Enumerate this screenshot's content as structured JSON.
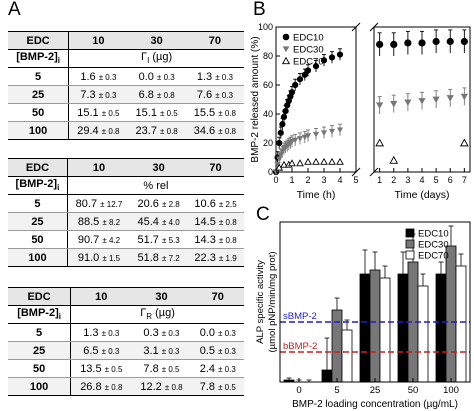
{
  "panel_labels": {
    "a": "A",
    "b": "B",
    "c": "C"
  },
  "tables": [
    {
      "edc_label": "EDC",
      "cols": [
        "10",
        "30",
        "70"
      ],
      "row_label": "[BMP-2]",
      "row_label_sub": "i",
      "measure": "Γ",
      "measure_sub": "I",
      "measure_unit": "(µg)",
      "rows": [
        {
          "conc": "5",
          "cells": [
            {
              "v": "1.6",
              "e": "± 0.3"
            },
            {
              "v": "0.0",
              "e": "± 0.3"
            },
            {
              "v": "1.3",
              "e": "± 0.3"
            }
          ]
        },
        {
          "conc": "25",
          "cells": [
            {
              "v": "7.3",
              "e": "± 0.3"
            },
            {
              "v": "6.8",
              "e": "± 0.8"
            },
            {
              "v": "7.6",
              "e": "± 0.3"
            }
          ]
        },
        {
          "conc": "50",
          "cells": [
            {
              "v": "15.1",
              "e": "± 0.5"
            },
            {
              "v": "15.1",
              "e": "± 0.5"
            },
            {
              "v": "15.5",
              "e": "± 0.8"
            }
          ]
        },
        {
          "conc": "100",
          "cells": [
            {
              "v": "29.4",
              "e": "± 0.8"
            },
            {
              "v": "23.7",
              "e": "± 0.8"
            },
            {
              "v": "34.6",
              "e": "± 0.8"
            }
          ]
        }
      ]
    },
    {
      "edc_label": "EDC",
      "cols": [
        "10",
        "30",
        "70"
      ],
      "row_label": "[BMP-2]",
      "row_label_sub": "i",
      "measure": "% rel",
      "measure_sub": "",
      "measure_unit": "",
      "rows": [
        {
          "conc": "5",
          "cells": [
            {
              "v": "80.7",
              "e": "± 12.7"
            },
            {
              "v": "20.6",
              "e": "± 2.8"
            },
            {
              "v": "10.6",
              "e": "± 2.5"
            }
          ]
        },
        {
          "conc": "25",
          "cells": [
            {
              "v": "88.5",
              "e": "± 8.2"
            },
            {
              "v": "45.4",
              "e": "± 4.0"
            },
            {
              "v": "14.5",
              "e": "± 0.8"
            }
          ]
        },
        {
          "conc": "50",
          "cells": [
            {
              "v": "90.7",
              "e": "± 4.2"
            },
            {
              "v": "51.7",
              "e": "± 5.3"
            },
            {
              "v": "14.3",
              "e": "± 0.8"
            }
          ]
        },
        {
          "conc": "100",
          "cells": [
            {
              "v": "91.0",
              "e": "± 1.5"
            },
            {
              "v": "51.8",
              "e": "± 7.2"
            },
            {
              "v": "22.3",
              "e": "± 1.9"
            }
          ]
        }
      ]
    },
    {
      "edc_label": "EDC",
      "cols": [
        "10",
        "30",
        "70"
      ],
      "row_label": "[BMP-2]",
      "row_label_sub": "i",
      "measure": "Γ",
      "measure_sub": "R",
      "measure_unit": "(µg)",
      "rows": [
        {
          "conc": "5",
          "cells": [
            {
              "v": "1.3",
              "e": "± 0.3"
            },
            {
              "v": "0.3",
              "e": "± 0.3"
            },
            {
              "v": "0.0",
              "e": "± 0.3"
            }
          ]
        },
        {
          "conc": "25",
          "cells": [
            {
              "v": "6.5",
              "e": "± 0.3"
            },
            {
              "v": "3.1",
              "e": "± 0.3"
            },
            {
              "v": "0.5",
              "e": "± 0.3"
            }
          ]
        },
        {
          "conc": "50",
          "cells": [
            {
              "v": "13.5",
              "e": "± 0.5"
            },
            {
              "v": "7.8",
              "e": "± 0.5"
            },
            {
              "v": "2.4",
              "e": "± 0.3"
            }
          ]
        },
        {
          "conc": "100",
          "cells": [
            {
              "v": "26.8",
              "e": "± 0.8"
            },
            {
              "v": "12.2",
              "e": "± 0.8"
            },
            {
              "v": "7.8",
              "e": "± 0.5"
            }
          ]
        }
      ]
    }
  ],
  "chart_data": [
    {
      "type": "scatter",
      "ylabel": "BMP-2 released amount (%)",
      "ylim": [
        0,
        100
      ],
      "yticks": [
        "0",
        "20",
        "40",
        "60",
        "80",
        "100"
      ],
      "legend_position": "top-left",
      "legend": [
        {
          "name": "EDC10",
          "marker": "filled-circle",
          "color": "#000000"
        },
        {
          "name": "EDC30",
          "marker": "filled-triangle-down",
          "color": "#777777"
        },
        {
          "name": "EDC70",
          "marker": "open-triangle-up",
          "color": "#000000"
        }
      ],
      "panels": [
        {
          "xlabel": "Time (h)",
          "xlim": [
            0,
            5
          ],
          "xticks": [
            "0",
            "1",
            "2",
            "3",
            "4",
            "5"
          ],
          "series": [
            {
              "name": "EDC10",
              "x": [
                0,
                0.1,
                0.2,
                0.3,
                0.4,
                0.5,
                0.6,
                0.7,
                0.8,
                0.9,
                1.0,
                1.2,
                1.5,
                1.8,
                2.0,
                2.5,
                3.0,
                3.5,
                4.0
              ],
              "y": [
                0,
                10,
                20,
                27,
                33,
                38,
                42,
                46,
                49,
                52,
                55,
                60,
                64,
                67,
                70,
                73,
                77,
                79,
                81
              ]
            },
            {
              "name": "EDC30",
              "x": [
                0,
                0.1,
                0.2,
                0.3,
                0.4,
                0.5,
                0.6,
                0.7,
                0.8,
                0.9,
                1.0,
                1.2,
                1.5,
                1.8,
                2.0,
                2.5,
                3.0,
                3.5,
                4.0
              ],
              "y": [
                0,
                5,
                9,
                12,
                14,
                16,
                17,
                18,
                19,
                20,
                21,
                22,
                23,
                24,
                25,
                26,
                27,
                28,
                29
              ]
            },
            {
              "name": "EDC70",
              "x": [
                0.2,
                0.5,
                0.8,
                1.0,
                1.5,
                2.0,
                2.5,
                3.0,
                3.5,
                4.0
              ],
              "y": [
                3,
                5,
                5,
                6,
                6,
                7,
                7,
                7,
                7,
                7
              ]
            }
          ]
        },
        {
          "xlabel": "Time (days)",
          "xlim": [
            0.6,
            7.4
          ],
          "xticks": [
            "1",
            "2",
            "3",
            "4",
            "5",
            "6",
            "7"
          ],
          "series": [
            {
              "name": "EDC10",
              "x": [
                1,
                2,
                3,
                4,
                5,
                6,
                7
              ],
              "y": [
                88,
                88,
                89,
                89,
                90,
                90,
                90
              ]
            },
            {
              "name": "EDC30",
              "x": [
                1,
                2,
                3,
                4,
                5,
                6,
                7
              ],
              "y": [
                46,
                47,
                48,
                49,
                50,
                51,
                52
              ]
            },
            {
              "name": "EDC70",
              "x": [
                1,
                2,
                7
              ],
              "y": [
                20,
                8,
                20
              ]
            }
          ]
        }
      ]
    },
    {
      "type": "bar",
      "xlabel": "BMP-2 loading concentration (µg/mL)",
      "ylabel": "ALP specific activity",
      "ylabel_line2": "(µmol pNP/min/mg prot)",
      "categories": [
        "0",
        "5",
        "25",
        "50",
        "100"
      ],
      "series": [
        {
          "name": "EDC10",
          "color": "#000000",
          "values": [
            0.05,
            0.3,
            2.7,
            2.7,
            2.7
          ],
          "errors": [
            0.05,
            0.8,
            0.6,
            0.55,
            0.3
          ]
        },
        {
          "name": "EDC30",
          "color": "#777777",
          "values": [
            0.0,
            1.8,
            2.8,
            3.0,
            3.4
          ],
          "errors": [
            0.05,
            0.3,
            0.45,
            0.7,
            0.5
          ]
        },
        {
          "name": "EDC70",
          "color": "#ffffff",
          "values": [
            0.0,
            1.3,
            2.6,
            2.4,
            2.9
          ],
          "errors": [
            0.05,
            0.25,
            0.3,
            0.3,
            0.3
          ]
        }
      ],
      "reference_lines": [
        {
          "label": "sBMP-2",
          "value": 1.5,
          "color": "#1f1fcf"
        },
        {
          "label": "bBMP-2",
          "value": 0.75,
          "color": "#cc1f1f"
        }
      ],
      "ylim": [
        0,
        4
      ],
      "legend_position": "top-right"
    }
  ]
}
